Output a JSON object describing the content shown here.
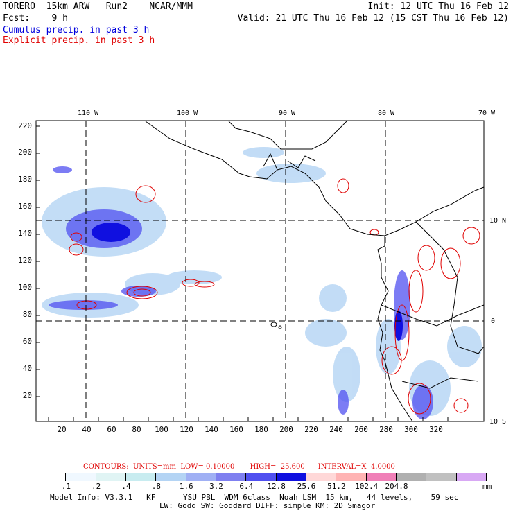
{
  "header": {
    "line1_left": "TORERO  15km ARW   Run2    NCAR/MMM",
    "line1_right": "Init: 12 UTC Thu 16 Feb 12",
    "line2_left": "Fcst:    9 h",
    "line2_right": "Valid: 21 UTC Thu 16 Feb 12 (15 CST Thu 16 Feb 12)",
    "line3": "Cumulus precip. in past 3 h",
    "line4": "Explicit precip. in past 3 h"
  },
  "map": {
    "lon_labels": [
      "110 W",
      "100 W",
      "90 W",
      "80 W",
      "70 W"
    ],
    "lat_labels": [
      "10 N",
      "0",
      "10 S"
    ],
    "x_ticks": [
      "20",
      "40",
      "60",
      "80",
      "100",
      "120",
      "140",
      "160",
      "180",
      "200",
      "220",
      "240",
      "260",
      "280",
      "300",
      "320"
    ],
    "y_ticks": [
      "220",
      "200",
      "180",
      "160",
      "140",
      "120",
      "100",
      "80",
      "60",
      "40",
      "20"
    ]
  },
  "contours": {
    "label": "CONTOURS:  UNITS=mm  LOW= 0.10000       HIGH=  25.600      INTERVAL=X  4.0000"
  },
  "colorbar": {
    "colors": [
      "#ffffff",
      "#f0f8ff",
      "#e0f4f4",
      "#c8ecf0",
      "#b4d4f4",
      "#a0b0f4",
      "#7f80f0",
      "#5050f0",
      "#1010e0",
      "#ffd8d8",
      "#ffb4b4",
      "#f080b8",
      "#b0b0b0",
      "#c0c0c0",
      "#d8a8f4"
    ],
    "labels": [
      ".1",
      ".2",
      ".4",
      ".8",
      "1.6",
      "3.2",
      "6.4",
      "12.8",
      "25.6",
      "51.2",
      "102.4",
      "204.8"
    ],
    "unit": "mm"
  },
  "footer": {
    "line1": "Model Info: V3.3.1   KF      YSU PBL  WDM 6class  Noah LSM  15 km,   44 levels,    59 sec",
    "line2": "LW: Godd SW: Goddard DIFF: simple KM: 2D Smagor"
  }
}
